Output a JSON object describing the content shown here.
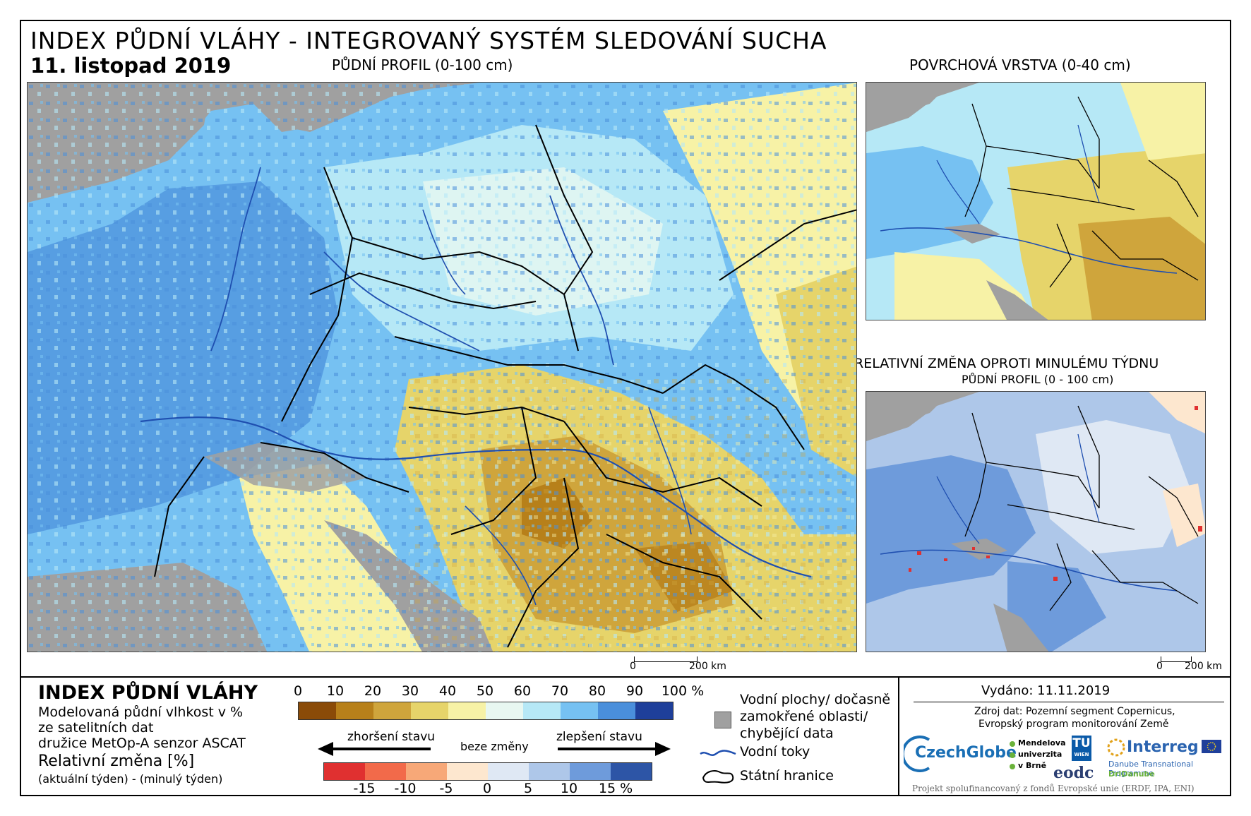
{
  "header": {
    "title": "INDEX PŮDNÍ VLÁHY - INTEGROVANÝ SYSTÉM SLEDOVÁNÍ SUCHA",
    "date": "11. listopad 2019"
  },
  "panels": {
    "main_title": "PŮDNÍ PROFIL (0-100 cm)",
    "surface_title": "POVRCHOVÁ VRSTVA (0-40 cm)",
    "change_title": "RELATIVNÍ ZMĚNA OPROTI MINULÉMU TÝDNU",
    "change_subtitle": "PŮDNÍ PROFIL (0 - 100 cm)"
  },
  "scalebar": {
    "zero": "0",
    "distance": "200 km"
  },
  "legend": {
    "title": "INDEX PŮDNÍ VLÁHY",
    "desc1": "Modelovaná půdní vlhkost v %",
    "desc2": "ze satelitních dat",
    "desc3": "družice MetOp-A senzor ASCAT",
    "change_title": "Relativní změna [%]",
    "change_desc": "(aktuální týden) - (minulý týden)",
    "index_ticks": [
      "0",
      "10",
      "20",
      "30",
      "40",
      "50",
      "60",
      "70",
      "80",
      "90",
      "100 %"
    ],
    "index_colors": [
      "#8a4b08",
      "#b7801a",
      "#cfa53c",
      "#e6d46a",
      "#f7f2a6",
      "#e8f7f1",
      "#b6e8f6",
      "#76c1f2",
      "#4a8fdb",
      "#1e3f9a"
    ],
    "worse": "zhoršení stavu",
    "nochange": "beze změny",
    "better": "zlepšení stavu",
    "change_ticks": [
      "-15",
      "-10",
      "-5",
      "0",
      "5",
      "10",
      "15 %"
    ],
    "change_colors": [
      "#e03030",
      "#f26a4a",
      "#f7a878",
      "#fde7cf",
      "#dfe8f4",
      "#aec7e9",
      "#6e9bdb",
      "#2d55a6"
    ],
    "water_label_1": "Vodní plochy/ dočasně",
    "water_label_2": "zamokřené oblasti/",
    "water_label_3": "chybějící data",
    "rivers_label": "Vodní toky",
    "borders_label": "Státní hranice"
  },
  "info": {
    "issued": "Vydáno: 11.11.2019",
    "source1": "Zdroj dat: Pozemní segment Copernicus,",
    "source2": "Evropský program monitorování Země",
    "czechglobe": "CzechGlobe",
    "mendelu_1": "Mendelova",
    "mendelu_2": "univerzita",
    "mendelu_3": "v Brně",
    "tu": "TU",
    "tu_sub": "WIEN",
    "eodc": "eodc",
    "interreg": "Interreg",
    "interreg_sub1": "Danube Transnational Programme",
    "interreg_sub2": "DriDanube",
    "funding": "Projekt spolufinancovaný z fondů Evropské unie (ERDF, IPA, ENI)"
  },
  "colors": {
    "sea": "#a0a0a0",
    "border": "#000000",
    "river": "#1f4fb0"
  }
}
